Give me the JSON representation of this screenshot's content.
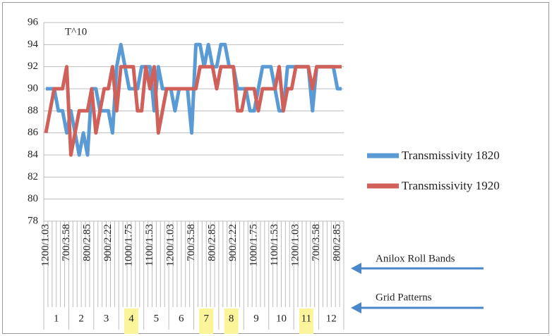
{
  "chart_data": {
    "type": "line",
    "annotations": [
      "T^10",
      "Anilox Roll Bands",
      "Grid Patterns"
    ],
    "categories": [
      "1200/1.03",
      null,
      null,
      null,
      null,
      "700/3.58",
      null,
      null,
      null,
      null,
      "800/2.85",
      null,
      null,
      null,
      null,
      "900/2.22",
      null,
      null,
      null,
      null,
      "1000/1.75",
      null,
      null,
      null,
      null,
      "1100/1.53",
      null,
      null,
      null,
      null,
      "1200/1.03",
      null,
      null,
      null,
      null,
      "700/3.58",
      null,
      null,
      null,
      null,
      "800/2.85",
      null,
      null,
      null,
      null,
      "900/2.22",
      null,
      null,
      null,
      null,
      "1000/1.75",
      null,
      null,
      null,
      null,
      "1100/1.53",
      null,
      null,
      null,
      null,
      "1200/1.03",
      null,
      null,
      null,
      null,
      "700/3.58",
      null,
      null,
      null,
      null,
      "800/2.85",
      null
    ],
    "groups": [
      {
        "label": "1",
        "highlight": false
      },
      {
        "label": "2",
        "highlight": false
      },
      {
        "label": "3",
        "highlight": false
      },
      {
        "label": "4",
        "highlight": true
      },
      {
        "label": "5",
        "highlight": false
      },
      {
        "label": "6",
        "highlight": false
      },
      {
        "label": "7",
        "highlight": true
      },
      {
        "label": "8",
        "highlight": true
      },
      {
        "label": "9",
        "highlight": false
      },
      {
        "label": "10",
        "highlight": false
      },
      {
        "label": "11",
        "highlight": true
      },
      {
        "label": "12",
        "highlight": false
      }
    ],
    "highlight_color": "#fbf49b",
    "series": [
      {
        "name": "Transmissivity 1820",
        "color": "#5b9bd5",
        "values": [
          90,
          90,
          90,
          88,
          88,
          86,
          88,
          86,
          84,
          86,
          84,
          90,
          90,
          88,
          88,
          88,
          86,
          92,
          94,
          92,
          90,
          90,
          90,
          92,
          92,
          92,
          88,
          92,
          90,
          90,
          90,
          88,
          90,
          90,
          90,
          86,
          94,
          94,
          92,
          94,
          92,
          92,
          94,
          94,
          92,
          92,
          90,
          90,
          90,
          88,
          88,
          90,
          92,
          92,
          92,
          90,
          88,
          88,
          92,
          92,
          92,
          92,
          92,
          92,
          88,
          92,
          92,
          92,
          92,
          92,
          90,
          90
        ]
      },
      {
        "name": "Transmissivity 1920",
        "color": "#d0605a",
        "values": [
          86,
          88,
          90,
          90,
          90,
          92,
          84,
          86,
          88,
          88,
          88,
          90,
          86,
          88,
          90,
          90,
          92,
          88,
          92,
          92,
          92,
          92,
          88,
          88,
          92,
          90,
          92,
          86,
          88,
          90,
          90,
          90,
          90,
          90,
          90,
          90,
          90,
          92,
          92,
          92,
          92,
          90,
          92,
          92,
          92,
          92,
          88,
          88,
          90,
          90,
          90,
          88,
          90,
          90,
          90,
          90,
          92,
          88,
          90,
          90,
          92,
          92,
          92,
          92,
          90,
          92,
          92,
          92,
          92,
          92,
          92,
          92
        ]
      }
    ],
    "ylim": [
      78,
      96
    ],
    "yticks": [
      78,
      80,
      82,
      84,
      86,
      88,
      90,
      92,
      94,
      96
    ],
    "grid": true,
    "legend": "right"
  }
}
